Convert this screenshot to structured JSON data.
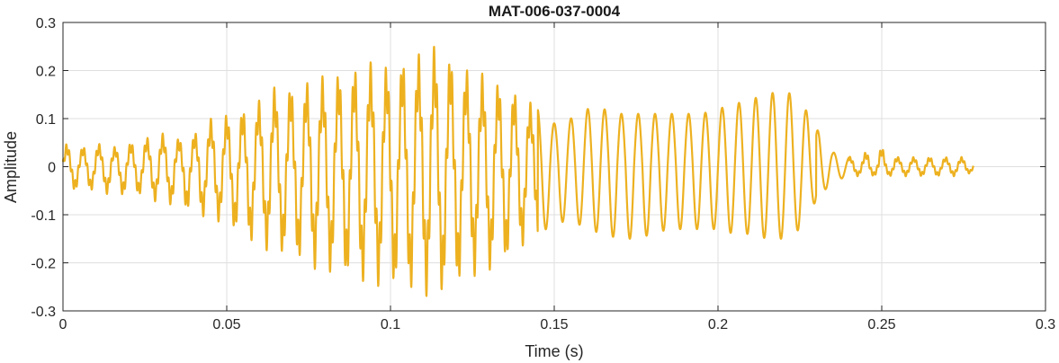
{
  "chart_data": {
    "type": "line",
    "title": "MAT-006-037-0004",
    "xlabel": "Time (s)",
    "ylabel": "Amplitude",
    "xlim": [
      0,
      0.3
    ],
    "ylim": [
      -0.3,
      0.3
    ],
    "x_ticks": [
      0,
      0.05,
      0.1,
      0.15,
      0.2,
      0.25,
      0.3
    ],
    "x_tick_labels": [
      "0",
      "0.05",
      "0.1",
      "0.15",
      "0.2",
      "0.25",
      "0.3"
    ],
    "y_ticks": [
      -0.3,
      -0.2,
      -0.1,
      0,
      0.1,
      0.2,
      0.3
    ],
    "y_tick_labels": [
      "-0.3",
      "-0.2",
      "-0.1",
      "0",
      "0.1",
      "0.2",
      "0.3"
    ],
    "grid": true,
    "line_color": "#EDB120",
    "series": [
      {
        "x": [
          0,
          0.005,
          0.01,
          0.015,
          0.02,
          0.025,
          0.03,
          0.035,
          0.04,
          0.045,
          0.05,
          0.055,
          0.06,
          0.065,
          0.07,
          0.075,
          0.08,
          0.085,
          0.09,
          0.095,
          0.1,
          0.105,
          0.11,
          0.115,
          0.12,
          0.125,
          0.13,
          0.135,
          0.14,
          0.145,
          0.15,
          0.155,
          0.16,
          0.165,
          0.17,
          0.175,
          0.18,
          0.185,
          0.19,
          0.195,
          0.2,
          0.205,
          0.21,
          0.215,
          0.22,
          0.225,
          0.23,
          0.235,
          0.24,
          0.245,
          0.25,
          0.255,
          0.26,
          0.265,
          0.27,
          0.275,
          0.278
        ],
        "max": [
          0.05,
          0.04,
          0.05,
          0.04,
          0.05,
          0.06,
          0.07,
          0.06,
          0.07,
          0.1,
          0.11,
          0.12,
          0.14,
          0.17,
          0.17,
          0.18,
          0.19,
          0.2,
          0.21,
          0.22,
          0.21,
          0.23,
          0.24,
          0.26,
          0.22,
          0.2,
          0.19,
          0.17,
          0.15,
          0.12,
          0.09,
          0.1,
          0.12,
          0.12,
          0.11,
          0.11,
          0.11,
          0.11,
          0.11,
          0.11,
          0.12,
          0.13,
          0.14,
          0.15,
          0.16,
          0.14,
          0.08,
          0.03,
          0.02,
          0.03,
          0.04,
          0.02,
          0.02,
          0.02,
          0.02,
          0.02,
          0.01
        ],
        "min": [
          -0.05,
          -0.05,
          -0.05,
          -0.06,
          -0.06,
          -0.06,
          -0.08,
          -0.08,
          -0.1,
          -0.11,
          -0.12,
          -0.15,
          -0.17,
          -0.18,
          -0.19,
          -0.21,
          -0.22,
          -0.23,
          -0.24,
          -0.25,
          -0.25,
          -0.26,
          -0.27,
          -0.27,
          -0.25,
          -0.23,
          -0.22,
          -0.2,
          -0.17,
          -0.14,
          -0.12,
          -0.11,
          -0.13,
          -0.14,
          -0.15,
          -0.15,
          -0.14,
          -0.13,
          -0.13,
          -0.13,
          -0.13,
          -0.14,
          -0.14,
          -0.15,
          -0.15,
          -0.13,
          -0.07,
          -0.03,
          -0.02,
          -0.02,
          -0.02,
          -0.02,
          -0.02,
          -0.02,
          -0.02,
          -0.02,
          -0.01
        ]
      }
    ]
  }
}
